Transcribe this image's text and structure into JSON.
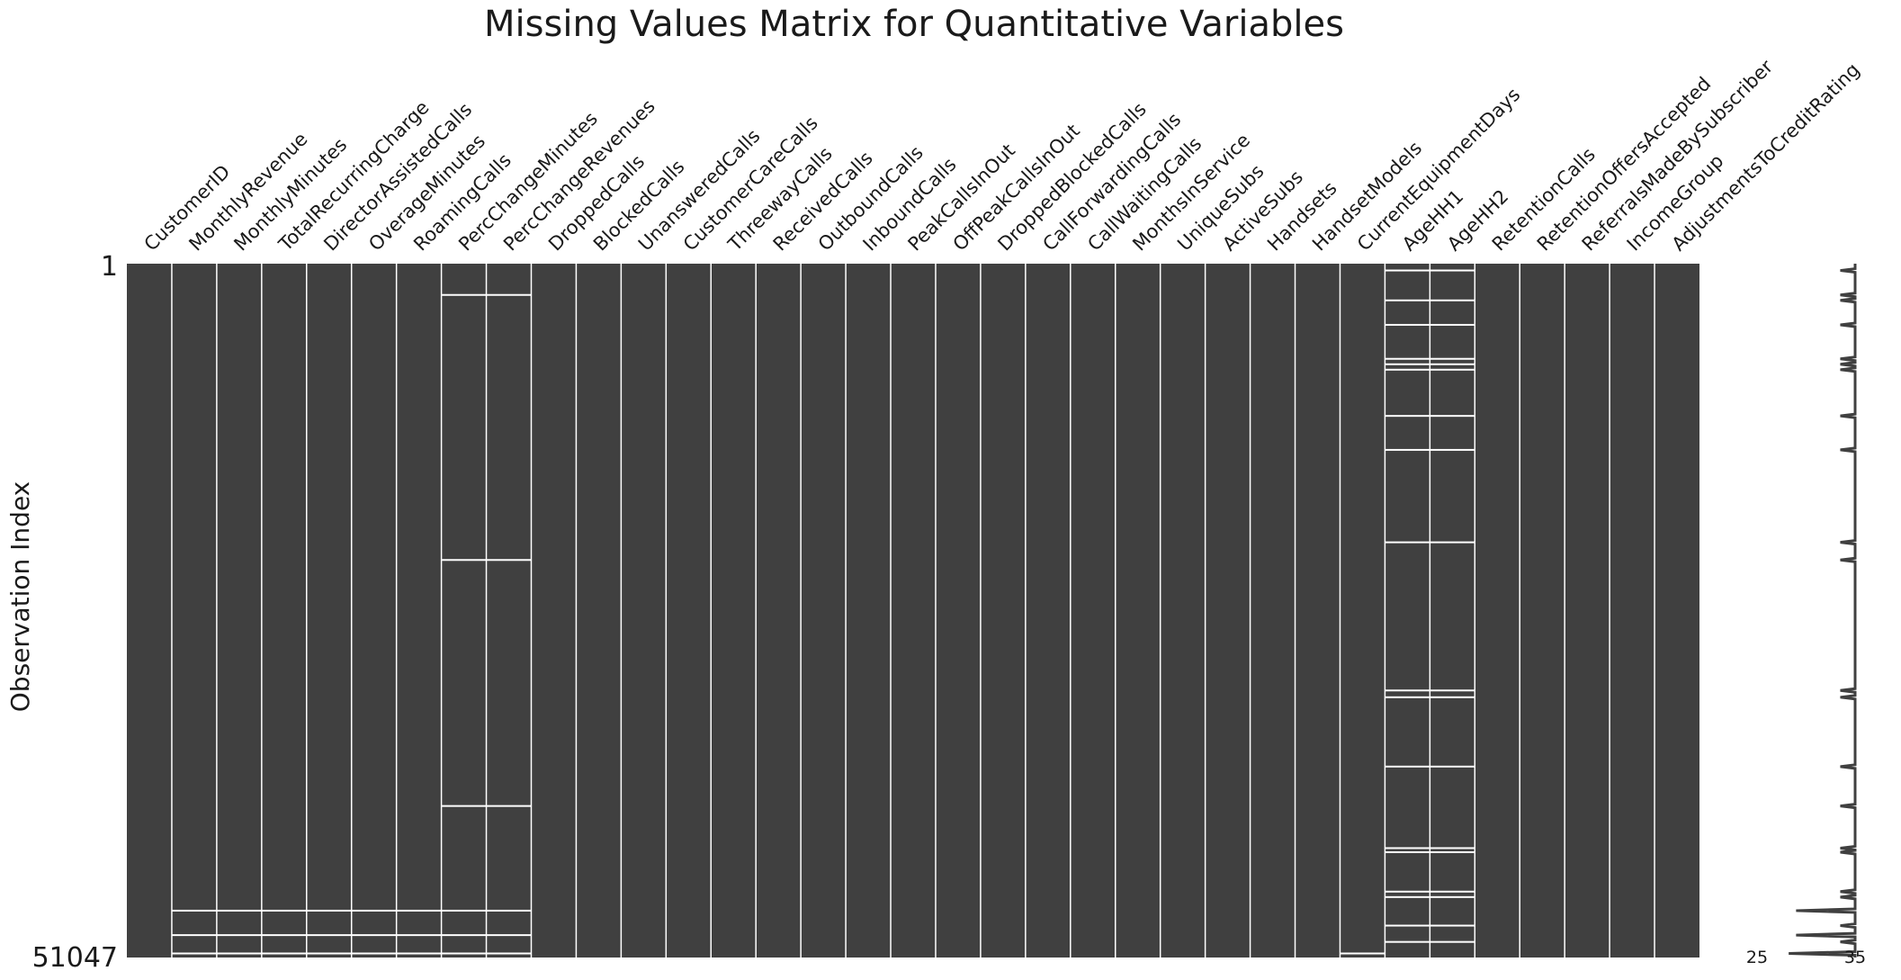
{
  "chart_data": {
    "type": "heatmap",
    "title": "Missing Values Matrix for Quantitative Variables",
    "ylabel": "Observation Index",
    "y_ticks": [
      "1",
      "51047"
    ],
    "n_rows": 51047,
    "present_color": "#404040",
    "missing_color": "#ffffff",
    "columns": [
      "CustomerID",
      "MonthlyRevenue",
      "MonthlyMinutes",
      "TotalRecurringCharge",
      "DirectorAssistedCalls",
      "OverageMinutes",
      "RoamingCalls",
      "PercChangeMinutes",
      "PercChangeRevenues",
      "DroppedCalls",
      "BlockedCalls",
      "UnansweredCalls",
      "CustomerCareCalls",
      "ThreewayCalls",
      "ReceivedCalls",
      "OutboundCalls",
      "InboundCalls",
      "PeakCallsInOut",
      "OffPeakCallsInOut",
      "DroppedBlockedCalls",
      "CallForwardingCalls",
      "CallWaitingCalls",
      "MonthsInService",
      "UniqueSubs",
      "ActiveSubs",
      "Handsets",
      "HandsetModels",
      "CurrentEquipmentDays",
      "AgeHH1",
      "AgeHH2",
      "RetentionCalls",
      "RetentionOffersAccepted",
      "ReferralsMadeBySubscriber",
      "IncomeGroup",
      "AdjustmentsToCreditRating"
    ],
    "missing_rows": {
      "MonthlyRevenue": [
        47600,
        49400,
        50750
      ],
      "MonthlyMinutes": [
        47600,
        49400,
        50750
      ],
      "TotalRecurringCharge": [
        47600,
        49400,
        50750
      ],
      "DirectorAssistedCalls": [
        47600,
        49400,
        50750
      ],
      "OverageMinutes": [
        47600,
        49400,
        50750
      ],
      "RoamingCalls": [
        47600,
        49400,
        50750
      ],
      "PercChangeMinutes": [
        2300,
        21800,
        39900,
        47600,
        49400,
        50750
      ],
      "PercChangeRevenues": [
        2300,
        21800,
        39900,
        47600,
        49400,
        50750
      ],
      "CurrentEquipmentDays": [
        50750
      ],
      "AgeHH1": [
        500,
        2700,
        4500,
        7000,
        7400,
        7800,
        11200,
        13700,
        20500,
        31400,
        31900,
        37000,
        43000,
        43300,
        46200,
        46600,
        48700,
        49900
      ],
      "AgeHH2": [
        500,
        2700,
        4500,
        7000,
        7400,
        7800,
        11200,
        13700,
        20500,
        31400,
        31900,
        37000,
        43000,
        43300,
        46200,
        46600,
        48700,
        49900
      ]
    },
    "sparkline": {
      "xlim": [
        25,
        35
      ],
      "min_label": "25",
      "max_label": "35"
    }
  }
}
